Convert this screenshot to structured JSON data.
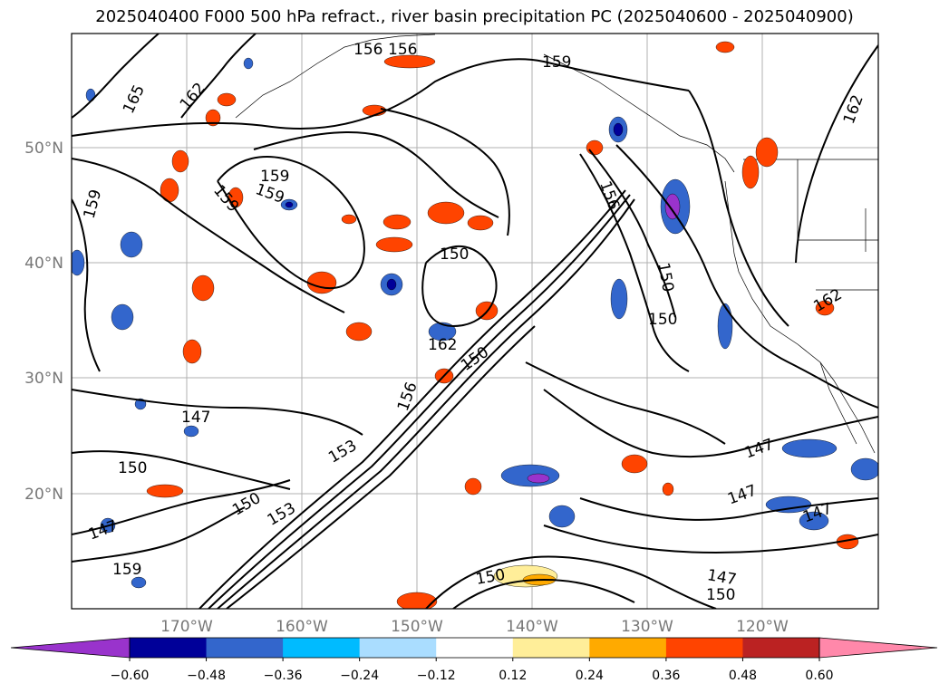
{
  "title": "2025040400 F000 500 hPa refract., river basin precipitation PC (2025040600 - 2025040900)",
  "map": {
    "lat_labels": [
      "50°N",
      "40°N",
      "30°N",
      "20°N"
    ],
    "lon_labels": [
      "170°W",
      "160°W",
      "150°W",
      "140°W",
      "130°W",
      "120°W"
    ],
    "contour_labels": [
      "165",
      "162",
      "156",
      "156",
      "159",
      "162",
      "159",
      "159",
      "159",
      "159",
      "156",
      "150",
      "150",
      "150",
      "162",
      "150",
      "156",
      "147",
      "150",
      "150",
      "153",
      "147",
      "159",
      "147",
      "147",
      "147",
      "150",
      "147",
      "150",
      "153",
      "162"
    ]
  },
  "colorbar": {
    "colors": [
      "#9933cc",
      "#000099",
      "#3366cc",
      "#00bbff",
      "#aaddff",
      "#ffffff",
      "#ffee99",
      "#ffaa00",
      "#ff4400",
      "#bb2222",
      "#ff88aa"
    ],
    "tick_labels": [
      "−0.60",
      "−0.48",
      "−0.36",
      "−0.24",
      "−0.12",
      "0.12",
      "0.24",
      "0.36",
      "0.48",
      "0.60"
    ]
  }
}
